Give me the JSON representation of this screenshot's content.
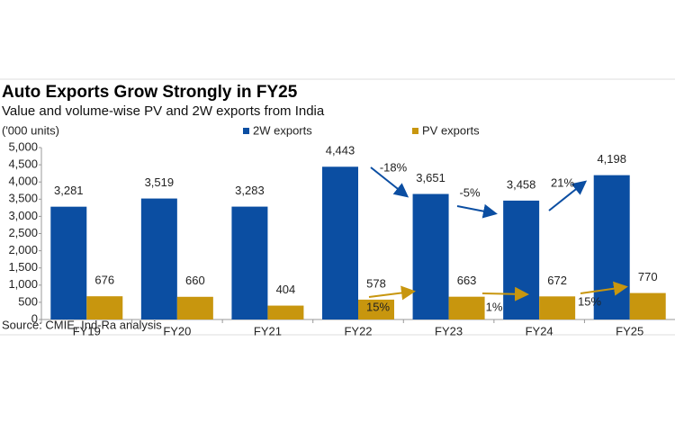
{
  "chart_data": {
    "type": "bar",
    "title": "Auto Exports Grow Strongly in FY25",
    "subtitle": "Value and volume-wise PV and 2W exports from India",
    "y_label": "('000 units)",
    "source": "Source: CMIE, Ind-Ra analysis",
    "categories": [
      "FY19",
      "FY20",
      "FY21",
      "FY22",
      "FY23",
      "FY24",
      "FY25"
    ],
    "series": [
      {
        "name": "2W exports",
        "color": "#0b4ea2",
        "values": [
          3281,
          3519,
          3283,
          4443,
          3651,
          3458,
          4198
        ],
        "value_labels": [
          "3,281",
          "3,519",
          "3,283",
          "4,443",
          "3,651",
          "3,458",
          "4,198"
        ]
      },
      {
        "name": "PV exports",
        "color": "#c8960e",
        "values": [
          676,
          660,
          404,
          578,
          663,
          672,
          770
        ]
      }
    ],
    "annotations": [
      "-18%",
      "-5%",
      "21%",
      "15%",
      "1%",
      "15%"
    ],
    "ylim": [
      0,
      5000
    ],
    "yticks": [
      0,
      500,
      {
        "value": 1000,
        "label": "1,000"
      },
      {
        "value": 1500,
        "label": "1,500"
      },
      {
        "value": 2000,
        "label": "2,000"
      },
      {
        "value": 2500,
        "label": "2,500"
      },
      {
        "value": 3000,
        "label": "3,000"
      },
      {
        "value": 3500,
        "label": "3,500"
      },
      {
        "value": 4000,
        "label": "4,000"
      },
      {
        "value": 4500,
        "label": "4,500"
      },
      {
        "value": 5000,
        "label": "5,000"
      }
    ],
    "grid": false
  }
}
